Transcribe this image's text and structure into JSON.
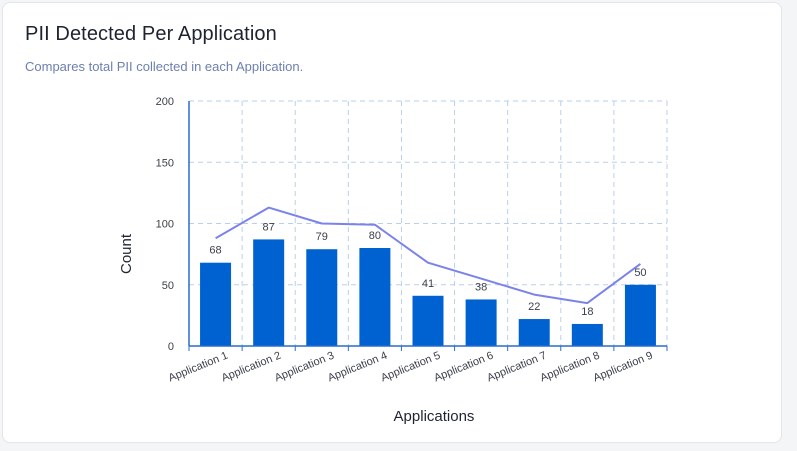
{
  "header": {
    "title": "PII Detected Per Application",
    "subtitle": "Compares total PII collected in each Application."
  },
  "colors": {
    "bar": "#0062d1",
    "line": "#7b83ea",
    "grid": "#b9cfee",
    "axis": "#2a6bd1"
  },
  "chart_data": {
    "type": "bar",
    "title": "PII Detected Per Application",
    "subtitle": "Compares total PII collected in each Application.",
    "xlabel": "Applications",
    "ylabel": "Count",
    "ylim": [
      0,
      200
    ],
    "yticks": [
      0,
      50,
      100,
      150,
      200
    ],
    "grid": true,
    "categories": [
      "Application 1",
      "Application 2",
      "Application 3",
      "Application 4",
      "Application 5",
      "Application 6",
      "Application 7",
      "Application 8",
      "Application 9"
    ],
    "series": [
      {
        "type": "bar",
        "values": [
          68,
          87,
          79,
          80,
          41,
          38,
          22,
          18,
          50
        ]
      },
      {
        "type": "line",
        "values": [
          88,
          113,
          100,
          99,
          68,
          55,
          42,
          35,
          67
        ]
      }
    ]
  }
}
